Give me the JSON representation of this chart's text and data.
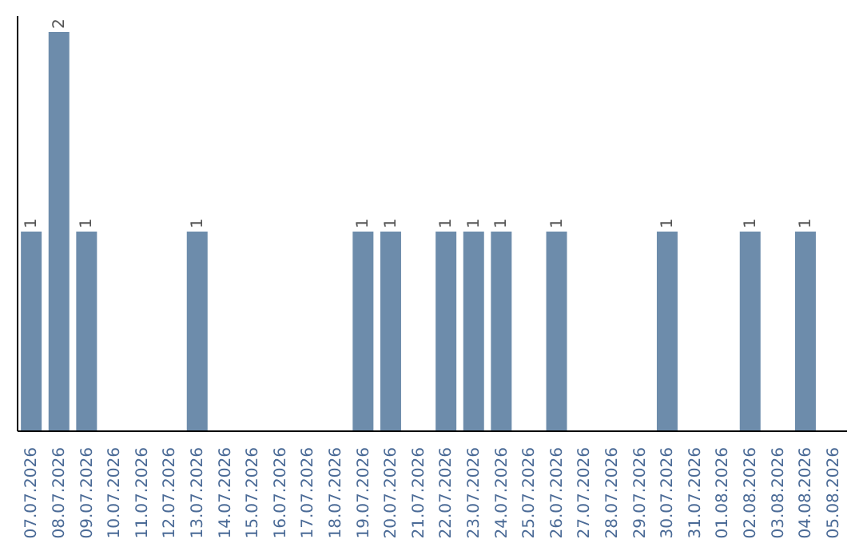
{
  "chart_data": {
    "type": "bar",
    "categories": [
      "07.07.2026",
      "08.07.2026",
      "09.07.2026",
      "10.07.2026",
      "11.07.2026",
      "12.07.2026",
      "13.07.2026",
      "14.07.2026",
      "15.07.2026",
      "16.07.2026",
      "17.07.2026",
      "18.07.2026",
      "19.07.2026",
      "20.07.2026",
      "21.07.2026",
      "22.07.2026",
      "23.07.2026",
      "24.07.2026",
      "25.07.2026",
      "26.07.2026",
      "27.07.2026",
      "28.07.2026",
      "29.07.2026",
      "30.07.2026",
      "31.07.2026",
      "01.08.2026",
      "02.08.2026",
      "03.08.2026",
      "04.08.2026",
      "05.08.2026"
    ],
    "values": [
      1,
      2,
      1,
      0,
      0,
      0,
      1,
      0,
      0,
      0,
      0,
      0,
      1,
      1,
      0,
      1,
      1,
      1,
      0,
      1,
      0,
      0,
      0,
      1,
      0,
      0,
      1,
      0,
      1,
      0
    ],
    "value_labels": [
      "1",
      "2",
      "1",
      null,
      null,
      null,
      "1",
      null,
      null,
      null,
      null,
      null,
      "1",
      "1",
      null,
      "1",
      "1",
      "1",
      null,
      "1",
      null,
      null,
      null,
      "1",
      null,
      null,
      "1",
      null,
      "1",
      null
    ],
    "color": "#6d8cab",
    "tick_labels": "x"
  }
}
